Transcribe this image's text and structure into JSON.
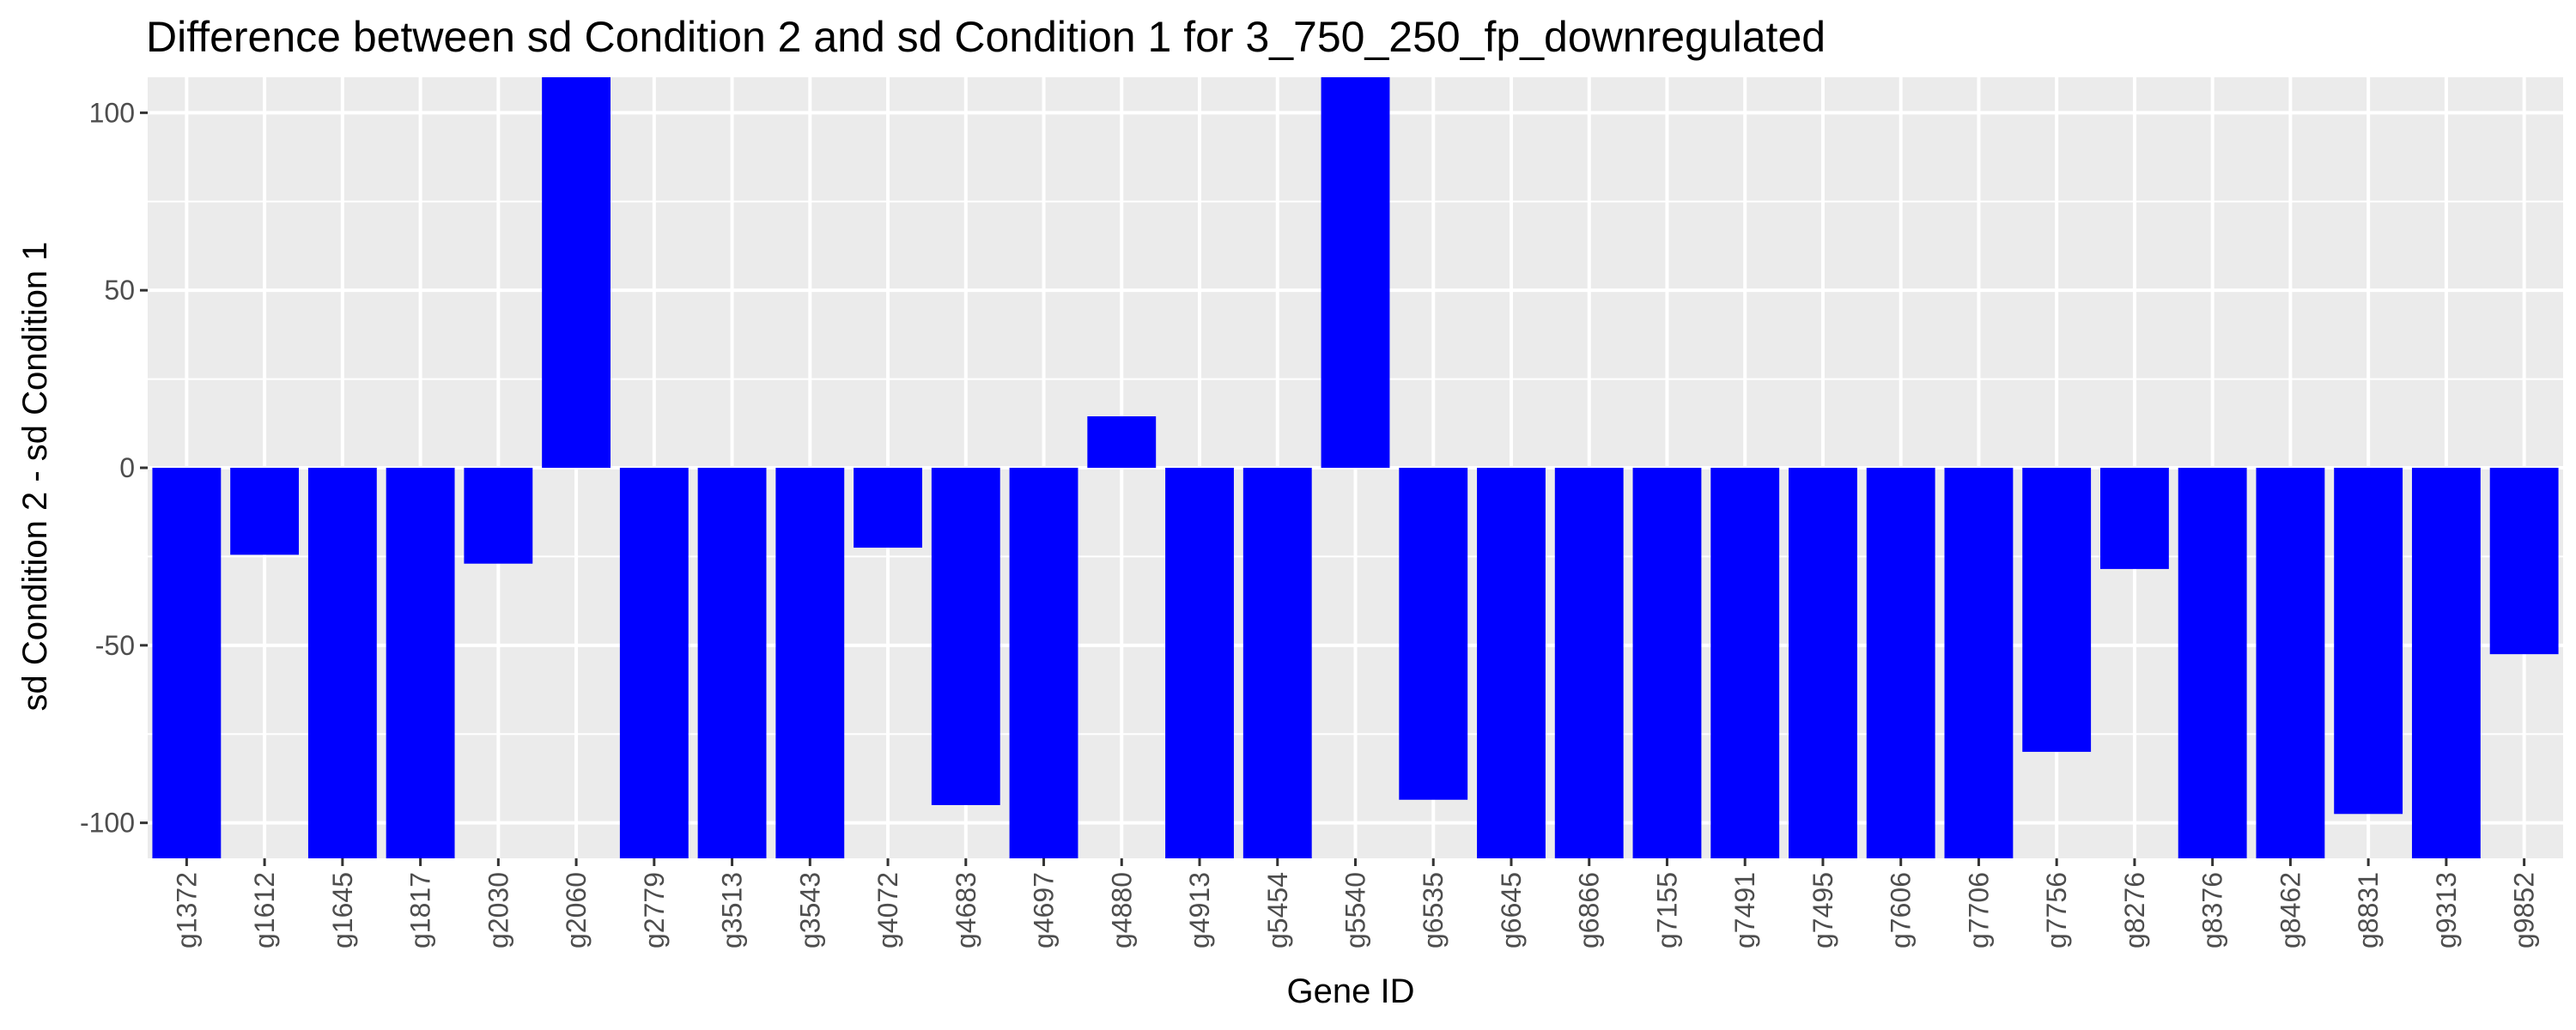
{
  "chart_data": {
    "type": "bar",
    "title": "Difference between sd Condition 2 and sd Condition 1 for 3_750_250_fp_downregulated",
    "xlabel": "Gene ID",
    "ylabel": "sd Condition 2 - sd Condition 1",
    "ylim": [
      -110,
      110
    ],
    "yticks": [
      -100,
      -50,
      0,
      50,
      100
    ],
    "ytick_labels": [
      "-100",
      "-50",
      "0",
      "50",
      "100"
    ],
    "grid": true,
    "legend": "none",
    "categories": [
      "g1372",
      "g1612",
      "g1645",
      "g1817",
      "g2030",
      "g2060",
      "g2779",
      "g3513",
      "g3543",
      "g4072",
      "g4683",
      "g4697",
      "g4880",
      "g4913",
      "g5454",
      "g5540",
      "g6535",
      "g6645",
      "g6866",
      "g7155",
      "g7491",
      "g7495",
      "g7606",
      "g7706",
      "g7756",
      "g8276",
      "g8376",
      "g8462",
      "g8831",
      "g9313",
      "g9852"
    ],
    "values": [
      -110,
      -24.5,
      -110,
      -110,
      -27,
      110,
      -110,
      -110,
      -110,
      -22.5,
      -95,
      -110,
      14.5,
      -110,
      -110,
      110,
      -93.5,
      -110,
      -110,
      -110,
      -110,
      -110,
      -110,
      -110,
      -80,
      -28.5,
      -110,
      -110,
      -97.5,
      -110,
      -52.5
    ]
  },
  "colors": {
    "bar": "#0000ff",
    "panel_background": "#ebebeb",
    "grid": "#ffffff",
    "tick_text": "#4d4d4d",
    "tick_mark": "#333333",
    "text": "#000000"
  }
}
